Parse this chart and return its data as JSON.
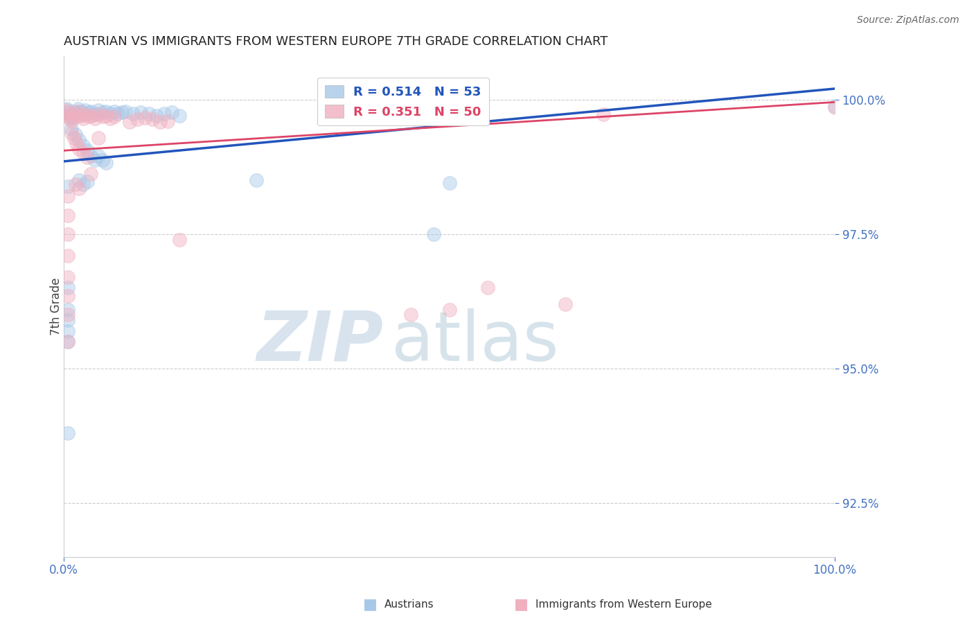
{
  "title": "AUSTRIAN VS IMMIGRANTS FROM WESTERN EUROPE 7TH GRADE CORRELATION CHART",
  "source_text": "Source: ZipAtlas.com",
  "ylabel": "7th Grade",
  "xlim": [
    0.0,
    100.0
  ],
  "ylim": [
    91.5,
    100.8
  ],
  "yticks": [
    92.5,
    95.0,
    97.5,
    100.0
  ],
  "xticks": [
    0.0,
    100.0
  ],
  "blue_R": 0.514,
  "blue_N": 53,
  "pink_R": 0.351,
  "pink_N": 50,
  "blue_label": "Austrians",
  "pink_label": "Immigrants from Western Europe",
  "axis_tick_color": "#4472c4",
  "grid_color": "#c0c0c0",
  "blue_color": "#a8c8e8",
  "pink_color": "#f0b0c0",
  "blue_line_color": "#2255bb",
  "pink_line_color": "#dd4466",
  "blue_line": [
    [
      0.0,
      98.85
    ],
    [
      100.0,
      100.2
    ]
  ],
  "pink_line": [
    [
      0.0,
      99.05
    ],
    [
      100.0,
      99.95
    ]
  ],
  "blue_scatter": [
    [
      0.3,
      99.82
    ],
    [
      0.5,
      99.78
    ],
    [
      0.7,
      99.72
    ],
    [
      0.9,
      99.68
    ],
    [
      1.1,
      99.65
    ],
    [
      1.3,
      99.78
    ],
    [
      1.6,
      99.75
    ],
    [
      1.9,
      99.82
    ],
    [
      2.2,
      99.78
    ],
    [
      2.5,
      99.72
    ],
    [
      2.8,
      99.8
    ],
    [
      3.2,
      99.76
    ],
    [
      3.6,
      99.78
    ],
    [
      4.0,
      99.72
    ],
    [
      4.5,
      99.8
    ],
    [
      5.0,
      99.76
    ],
    [
      5.5,
      99.78
    ],
    [
      6.0,
      99.73
    ],
    [
      6.5,
      99.78
    ],
    [
      7.0,
      99.73
    ],
    [
      7.5,
      99.76
    ],
    [
      8.0,
      99.78
    ],
    [
      9.0,
      99.73
    ],
    [
      10.0,
      99.76
    ],
    [
      11.0,
      99.73
    ],
    [
      12.0,
      99.7
    ],
    [
      13.0,
      99.74
    ],
    [
      14.0,
      99.76
    ],
    [
      15.0,
      99.7
    ],
    [
      1.0,
      99.45
    ],
    [
      1.5,
      99.35
    ],
    [
      2.0,
      99.25
    ],
    [
      2.5,
      99.15
    ],
    [
      3.0,
      99.05
    ],
    [
      3.5,
      98.95
    ],
    [
      4.0,
      98.88
    ],
    [
      4.5,
      98.95
    ],
    [
      5.0,
      98.88
    ],
    [
      5.5,
      98.82
    ],
    [
      2.0,
      98.5
    ],
    [
      2.5,
      98.42
    ],
    [
      3.0,
      98.48
    ],
    [
      0.5,
      98.38
    ],
    [
      0.5,
      96.5
    ],
    [
      0.5,
      96.1
    ],
    [
      25.0,
      98.5
    ],
    [
      50.0,
      98.45
    ],
    [
      100.0,
      99.88
    ],
    [
      0.5,
      95.9
    ],
    [
      0.5,
      95.7
    ],
    [
      0.5,
      95.5
    ],
    [
      48.0,
      97.5
    ],
    [
      0.5,
      93.8
    ]
  ],
  "pink_scatter": [
    [
      0.3,
      99.8
    ],
    [
      0.5,
      99.75
    ],
    [
      0.6,
      99.7
    ],
    [
      0.8,
      99.65
    ],
    [
      1.0,
      99.6
    ],
    [
      1.3,
      99.72
    ],
    [
      1.6,
      99.68
    ],
    [
      1.9,
      99.78
    ],
    [
      2.2,
      99.7
    ],
    [
      2.5,
      99.65
    ],
    [
      2.8,
      99.72
    ],
    [
      3.2,
      99.68
    ],
    [
      3.6,
      99.7
    ],
    [
      4.0,
      99.65
    ],
    [
      4.5,
      99.72
    ],
    [
      5.0,
      99.68
    ],
    [
      5.5,
      99.7
    ],
    [
      6.0,
      99.65
    ],
    [
      6.5,
      99.68
    ],
    [
      1.0,
      99.38
    ],
    [
      1.3,
      99.28
    ],
    [
      1.6,
      99.18
    ],
    [
      2.0,
      99.08
    ],
    [
      2.5,
      99.02
    ],
    [
      3.0,
      98.92
    ],
    [
      1.5,
      98.42
    ],
    [
      2.0,
      98.35
    ],
    [
      0.5,
      98.2
    ],
    [
      0.5,
      97.85
    ],
    [
      0.5,
      97.5
    ],
    [
      0.5,
      97.1
    ],
    [
      0.5,
      96.7
    ],
    [
      0.5,
      96.35
    ],
    [
      0.5,
      96.0
    ],
    [
      15.0,
      97.4
    ],
    [
      50.0,
      96.1
    ],
    [
      55.0,
      96.5
    ],
    [
      65.0,
      96.2
    ],
    [
      100.0,
      99.85
    ],
    [
      70.0,
      99.72
    ],
    [
      3.5,
      98.62
    ],
    [
      4.5,
      99.28
    ],
    [
      8.5,
      99.58
    ],
    [
      9.5,
      99.63
    ],
    [
      10.5,
      99.66
    ],
    [
      11.5,
      99.63
    ],
    [
      12.5,
      99.58
    ],
    [
      13.5,
      99.6
    ],
    [
      0.5,
      95.5
    ],
    [
      45.0,
      96.0
    ]
  ]
}
